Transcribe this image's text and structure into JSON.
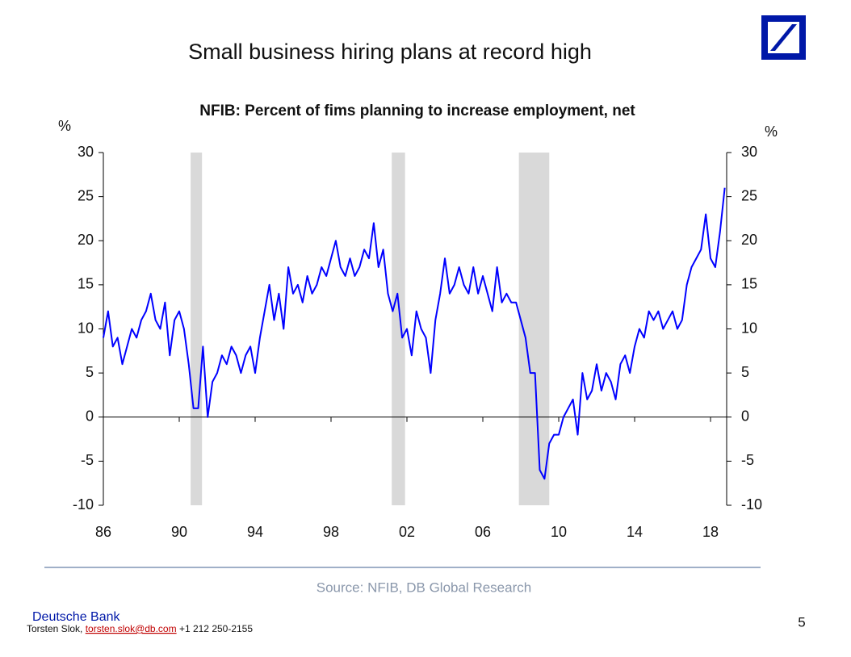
{
  "page": {
    "heading": "Small business hiring plans at record high",
    "source": "Source: NFIB,  DB Global Research",
    "brand": "Deutsche Bank",
    "author": "Torsten Slok, ",
    "email": "torsten.slok@db.com",
    "phone": "  +1 212 250-2155",
    "page_number": "5"
  },
  "chart_data": {
    "type": "line",
    "title": "NFIB: Percent of fims planning to increase employment, net",
    "y_label": "%",
    "y2_label": "%",
    "xlim": [
      1986,
      2018.85
    ],
    "xticks": [
      {
        "value": 1986,
        "label": "86"
      },
      {
        "value": 1990,
        "label": "90"
      },
      {
        "value": 1994,
        "label": "94"
      },
      {
        "value": 1998,
        "label": "98"
      },
      {
        "value": 2002,
        "label": "02"
      },
      {
        "value": 2006,
        "label": "06"
      },
      {
        "value": 2010,
        "label": "10"
      },
      {
        "value": 2014,
        "label": "14"
      },
      {
        "value": 2018,
        "label": "18"
      }
    ],
    "ylim": [
      -10,
      30
    ],
    "yticks": [
      -10,
      -5,
      0,
      5,
      10,
      15,
      20,
      25,
      30
    ],
    "y2lim": [
      -10,
      30
    ],
    "y2ticks": [
      -10,
      -5,
      0,
      5,
      10,
      15,
      20,
      25,
      30
    ],
    "shaded_periods": [
      [
        1990.6,
        1991.2
      ],
      [
        2001.2,
        2001.9
      ],
      [
        2007.9,
        2009.5
      ]
    ],
    "shade_color": "#d9d9d9",
    "x": [
      1986.0,
      1986.25,
      1986.5,
      1986.75,
      1987.0,
      1987.25,
      1987.5,
      1987.75,
      1988.0,
      1988.25,
      1988.5,
      1988.75,
      1989.0,
      1989.25,
      1989.5,
      1989.75,
      1990.0,
      1990.25,
      1990.5,
      1990.75,
      1991.0,
      1991.25,
      1991.5,
      1991.75,
      1992.0,
      1992.25,
      1992.5,
      1992.75,
      1993.0,
      1993.25,
      1993.5,
      1993.75,
      1994.0,
      1994.25,
      1994.5,
      1994.75,
      1995.0,
      1995.25,
      1995.5,
      1995.75,
      1996.0,
      1996.25,
      1996.5,
      1996.75,
      1997.0,
      1997.25,
      1997.5,
      1997.75,
      1998.0,
      1998.25,
      1998.5,
      1998.75,
      1999.0,
      1999.25,
      1999.5,
      1999.75,
      2000.0,
      2000.25,
      2000.5,
      2000.75,
      2001.0,
      2001.25,
      2001.5,
      2001.75,
      2002.0,
      2002.25,
      2002.5,
      2002.75,
      2003.0,
      2003.25,
      2003.5,
      2003.75,
      2004.0,
      2004.25,
      2004.5,
      2004.75,
      2005.0,
      2005.25,
      2005.5,
      2005.75,
      2006.0,
      2006.25,
      2006.5,
      2006.75,
      2007.0,
      2007.25,
      2007.5,
      2007.75,
      2008.0,
      2008.25,
      2008.5,
      2008.75,
      2009.0,
      2009.25,
      2009.5,
      2009.75,
      2010.0,
      2010.25,
      2010.5,
      2010.75,
      2011.0,
      2011.25,
      2011.5,
      2011.75,
      2012.0,
      2012.25,
      2012.5,
      2012.75,
      2013.0,
      2013.25,
      2013.5,
      2013.75,
      2014.0,
      2014.25,
      2014.5,
      2014.75,
      2015.0,
      2015.25,
      2015.5,
      2015.75,
      2016.0,
      2016.25,
      2016.5,
      2016.75,
      2017.0,
      2017.25,
      2017.5,
      2017.75,
      2018.0,
      2018.25,
      2018.5,
      2018.75
    ],
    "series": [
      {
        "color": "#0000ff",
        "values": [
          9,
          12,
          8,
          9,
          6,
          8,
          10,
          9,
          11,
          12,
          14,
          11,
          10,
          13,
          7,
          11,
          12,
          10,
          6,
          1,
          1,
          8,
          0,
          4,
          5,
          7,
          6,
          8,
          7,
          5,
          7,
          8,
          5,
          9,
          12,
          15,
          11,
          14,
          10,
          17,
          14,
          15,
          13,
          16,
          14,
          15,
          17,
          16,
          18,
          20,
          17,
          16,
          18,
          16,
          17,
          19,
          18,
          22,
          17,
          19,
          14,
          12,
          14,
          9,
          10,
          7,
          12,
          10,
          9,
          5,
          11,
          14,
          18,
          14,
          15,
          17,
          15,
          14,
          17,
          14,
          16,
          14,
          12,
          17,
          13,
          14,
          13,
          13,
          11,
          9,
          5,
          5,
          -6,
          -7,
          -3,
          -2,
          -2,
          0,
          1,
          2,
          -2,
          5,
          2,
          3,
          6,
          3,
          5,
          4,
          2,
          6,
          7,
          5,
          8,
          10,
          9,
          12,
          11,
          12,
          10,
          11,
          12,
          10,
          11,
          15,
          17,
          18,
          19,
          23,
          18,
          17,
          21,
          26
        ]
      }
    ]
  }
}
